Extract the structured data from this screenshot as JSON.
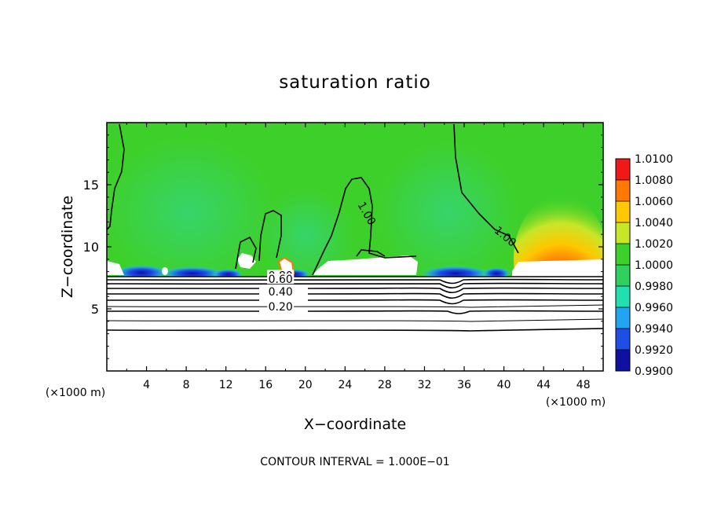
{
  "chart_data": {
    "type": "heatmap",
    "title": "saturation ratio",
    "xlabel": "X−coordinate",
    "ylabel": "Z−coordinate",
    "x_unit": "(×1000 m)",
    "y_unit": "(×1000 m)",
    "xlim": [
      0,
      50
    ],
    "ylim": [
      0,
      20
    ],
    "x_ticks": [
      4,
      8,
      12,
      16,
      20,
      24,
      28,
      32,
      36,
      40,
      44,
      48
    ],
    "y_ticks": [
      5,
      10,
      15
    ],
    "footer": "CONTOUR INTERVAL = 1.000E−01",
    "colorbar": {
      "levels": [
        "0.9900",
        "0.9920",
        "0.9940",
        "0.9960",
        "0.9980",
        "1.0000",
        "1.0020",
        "1.0040",
        "1.0060",
        "1.0080",
        "1.0100"
      ],
      "colors": [
        "#5a1e8c",
        "#1010a0",
        "#1e4ee6",
        "#22a4f0",
        "#20e0b0",
        "#30d060",
        "#3ed02a",
        "#c8e628",
        "#ffc800",
        "#ff7800",
        "#f01818",
        "#ff9090"
      ]
    },
    "contour_labels": [
      {
        "text": "1.00",
        "x": 26.0,
        "y": 12.6
      },
      {
        "text": "1.00",
        "x": 40.0,
        "y": 10.7
      },
      {
        "text": "0.80",
        "x": 17.5,
        "y": 7.5
      },
      {
        "text": "0.60",
        "x": 17.5,
        "y": 7.2
      },
      {
        "text": "0.40",
        "x": 17.5,
        "y": 6.2
      },
      {
        "text": "0.20",
        "x": 17.5,
        "y": 5.0
      }
    ],
    "grid": false,
    "legend": "right"
  }
}
